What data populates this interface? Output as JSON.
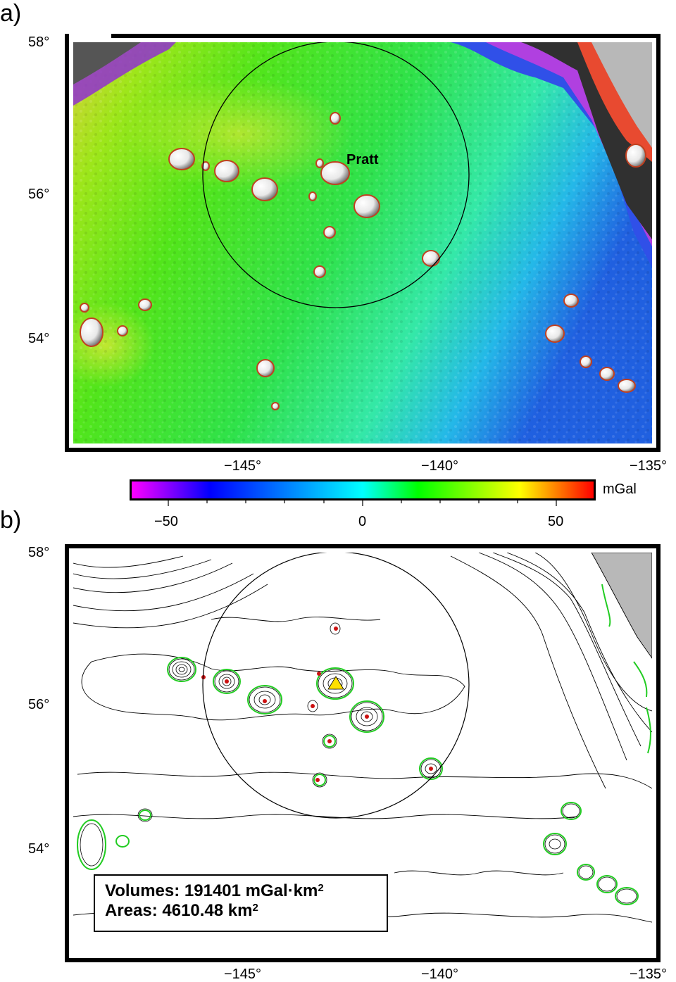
{
  "panels": {
    "a": {
      "label": "a)"
    },
    "b": {
      "label": "b)"
    }
  },
  "map": {
    "lon_range": [
      -149,
      -135
    ],
    "lat_range": [
      53,
      58
    ],
    "x_ticks": [
      "−145°",
      "−140°",
      "−135°"
    ],
    "y_ticks": [
      "58°",
      "56°",
      "54°"
    ]
  },
  "annotation": {
    "seamount_name": "Pratt"
  },
  "colorbar": {
    "unit": "mGal",
    "ticks": [
      "−50",
      "0",
      "50"
    ],
    "colors": [
      "#ff00ff",
      "#0000ff",
      "#00ffff",
      "#00ff00",
      "#ffff00",
      "#ff0000"
    ]
  },
  "legend": {
    "volumes_label": "Volumes: 191401 mGal·km",
    "volumes_exp": "2",
    "areas_label": "Areas: 4610.48 km",
    "areas_exp": "2"
  }
}
